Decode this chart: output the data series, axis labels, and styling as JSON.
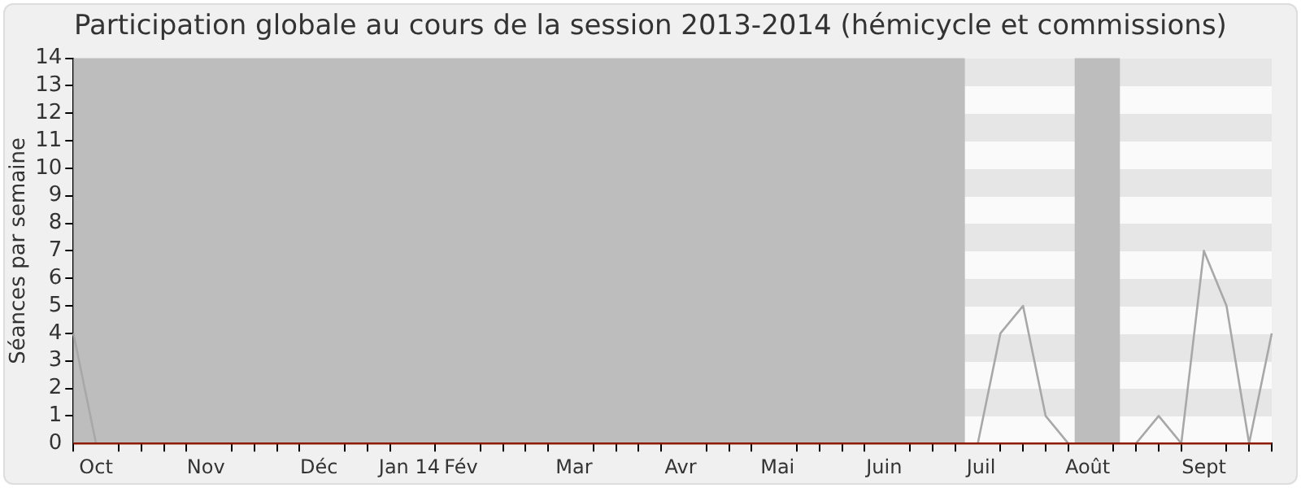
{
  "chart_data": {
    "type": "line",
    "title": "Participation globale au cours de la session 2013-2014 (hémicycle et commissions)",
    "ylabel": "Séances par semaine",
    "x": [
      "2013-09-30",
      "2013-10-07",
      "2013-10-14",
      "2013-10-21",
      "2013-10-28",
      "2013-11-04",
      "2013-11-11",
      "2013-11-18",
      "2013-11-25",
      "2013-12-02",
      "2013-12-09",
      "2013-12-16",
      "2013-12-23",
      "2013-12-30",
      "2014-01-06",
      "2014-01-13",
      "2014-01-20",
      "2014-01-27",
      "2014-02-03",
      "2014-02-10",
      "2014-02-17",
      "2014-02-24",
      "2014-03-03",
      "2014-03-10",
      "2014-03-17",
      "2014-03-24",
      "2014-03-31",
      "2014-04-07",
      "2014-04-14",
      "2014-04-21",
      "2014-04-28",
      "2014-05-05",
      "2014-05-12",
      "2014-05-19",
      "2014-05-26",
      "2014-06-02",
      "2014-06-09",
      "2014-06-16",
      "2014-06-23",
      "2014-06-30",
      "2014-07-07",
      "2014-07-14",
      "2014-07-21",
      "2014-07-28",
      "2014-08-04",
      "2014-08-11",
      "2014-08-18",
      "2014-08-25",
      "2014-09-01",
      "2014-09-08",
      "2014-09-15",
      "2014-09-22",
      "2014-09-29",
      "2014-10-06"
    ],
    "series": [
      {
        "color": "#a8a8a8",
        "values": [
          4,
          0,
          null,
          null,
          null,
          null,
          null,
          null,
          null,
          null,
          null,
          null,
          null,
          null,
          null,
          null,
          null,
          null,
          null,
          null,
          null,
          null,
          null,
          null,
          null,
          null,
          null,
          null,
          null,
          null,
          null,
          null,
          null,
          null,
          null,
          null,
          null,
          null,
          null,
          null,
          0,
          4,
          5,
          1,
          0,
          null,
          null,
          0,
          1,
          0,
          7,
          5,
          0,
          4
        ]
      },
      {
        "color": "#8b1a00",
        "values": [
          0,
          0,
          0,
          0,
          0,
          0,
          0,
          0,
          0,
          0,
          0,
          0,
          0,
          0,
          0,
          0,
          0,
          0,
          0,
          0,
          0,
          0,
          0,
          0,
          0,
          0,
          0,
          0,
          0,
          0,
          0,
          0,
          0,
          0,
          0,
          0,
          0,
          0,
          0,
          0,
          0,
          0,
          0,
          0,
          0,
          0,
          0,
          0,
          0,
          0,
          0,
          0,
          0,
          0
        ]
      }
    ],
    "xlim": [
      "2013-09-30",
      "2014-10-06"
    ],
    "xticks": [
      {
        "value": "2013-09-30",
        "label": null
      },
      {
        "value": "2013-10-14",
        "label": null
      },
      {
        "value": "2013-10-21",
        "label": null
      },
      {
        "value": "2013-10-28",
        "label": null
      },
      {
        "value": "2013-11-04",
        "label": null
      },
      {
        "value": "2013-11-18",
        "label": null
      },
      {
        "value": "2013-11-25",
        "label": null
      },
      {
        "value": "2013-12-02",
        "label": null
      },
      {
        "value": "2013-12-09",
        "label": null
      },
      {
        "value": "2013-12-23",
        "label": null
      },
      {
        "value": "2013-12-30",
        "label": null
      },
      {
        "value": "2014-01-06",
        "label": null
      },
      {
        "value": "2014-01-20",
        "label": null
      },
      {
        "value": "2014-02-03",
        "label": null
      },
      {
        "value": "2014-02-10",
        "label": null
      },
      {
        "value": "2014-02-17",
        "label": null
      },
      {
        "value": "2014-02-24",
        "label": null
      },
      {
        "value": "2014-03-10",
        "label": null
      },
      {
        "value": "2014-03-17",
        "label": null
      },
      {
        "value": "2014-03-24",
        "label": null
      },
      {
        "value": "2014-03-31",
        "label": null
      },
      {
        "value": "2014-04-14",
        "label": null
      },
      {
        "value": "2014-04-21",
        "label": null
      },
      {
        "value": "2014-04-28",
        "label": null
      },
      {
        "value": "2014-05-12",
        "label": null
      },
      {
        "value": "2014-05-19",
        "label": null
      },
      {
        "value": "2014-05-26",
        "label": null
      },
      {
        "value": "2014-06-02",
        "label": null
      },
      {
        "value": "2014-06-16",
        "label": null
      },
      {
        "value": "2014-06-23",
        "label": null
      },
      {
        "value": "2014-06-30",
        "label": null
      },
      {
        "value": "2014-07-14",
        "label": null
      },
      {
        "value": "2014-07-21",
        "label": null
      },
      {
        "value": "2014-07-28",
        "label": null
      },
      {
        "value": "2014-08-04",
        "label": null
      },
      {
        "value": "2014-08-18",
        "label": null
      },
      {
        "value": "2014-08-25",
        "label": null
      },
      {
        "value": "2014-09-01",
        "label": null
      },
      {
        "value": "2014-09-08",
        "label": null
      },
      {
        "value": "2014-09-22",
        "label": null
      },
      {
        "value": "2014-09-29",
        "label": null
      },
      {
        "value": "2014-10-06",
        "label": null
      },
      {
        "value": "2013-10-07",
        "label": "Oct"
      },
      {
        "value": "2013-11-10",
        "label": "Nov"
      },
      {
        "value": "2013-12-15",
        "label": "Déc"
      },
      {
        "value": "2014-01-12",
        "label": "Jan 14"
      },
      {
        "value": "2014-01-28",
        "label": "Fév"
      },
      {
        "value": "2014-03-04",
        "label": "Mar"
      },
      {
        "value": "2014-04-06",
        "label": "Avr"
      },
      {
        "value": "2014-05-06",
        "label": "Mai"
      },
      {
        "value": "2014-06-08",
        "label": "Juin"
      },
      {
        "value": "2014-07-08",
        "label": "Juil"
      },
      {
        "value": "2014-08-10",
        "label": "Août"
      },
      {
        "value": "2014-09-15",
        "label": "Sept"
      }
    ],
    "ylim": [
      0,
      14
    ],
    "yticks": [
      0,
      1,
      2,
      3,
      4,
      5,
      6,
      7,
      8,
      9,
      10,
      11,
      12,
      13,
      14
    ],
    "bands": [
      {
        "axis": "x",
        "from": "2013-09-30",
        "to": "2014-07-03",
        "color": "#bdbdbd"
      },
      {
        "axis": "x",
        "from": "2014-08-06",
        "to": "2014-08-20",
        "color": "#bdbdbd"
      }
    ],
    "grid": false,
    "legend": false,
    "marker": "none",
    "line_style": "solid"
  }
}
